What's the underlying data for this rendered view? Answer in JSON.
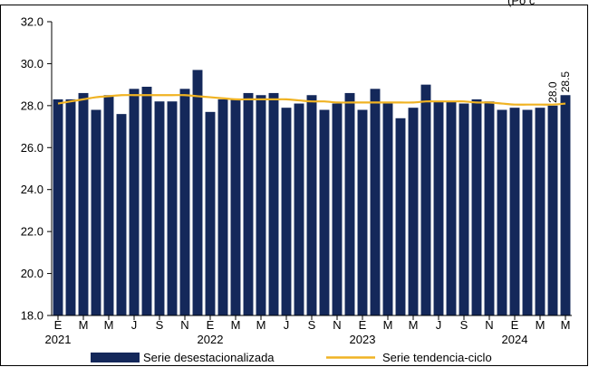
{
  "chart_data": {
    "type": "bar",
    "title": "",
    "corner_text": "(Po c",
    "xlabel": "",
    "ylabel": "",
    "ylim": [
      18.0,
      32.0
    ],
    "y_ticks": [
      "18.0",
      "20.0",
      "22.0",
      "24.0",
      "26.0",
      "28.0",
      "30.0",
      "32.0"
    ],
    "month_ticks": [
      "E",
      "M",
      "M",
      "J",
      "S",
      "N",
      "E",
      "M",
      "M",
      "J",
      "S",
      "N",
      "E",
      "M",
      "M",
      "J",
      "S",
      "N",
      "E",
      "M",
      "M"
    ],
    "year_labels": [
      "2021",
      "2022",
      "2023",
      "2024"
    ],
    "grid": false,
    "legend_position": "bottom",
    "series": [
      {
        "name": "Serie desestacionalizada",
        "type": "bar",
        "color": "#14285a",
        "values": [
          28.3,
          28.3,
          28.6,
          27.8,
          28.5,
          27.6,
          28.8,
          28.9,
          28.2,
          28.2,
          28.8,
          29.7,
          27.7,
          28.3,
          28.3,
          28.6,
          28.5,
          28.6,
          27.9,
          28.1,
          28.5,
          27.8,
          28.1,
          28.6,
          27.8,
          28.8,
          28.1,
          27.4,
          27.9,
          29.0,
          28.2,
          28.2,
          28.1,
          28.3,
          28.2,
          27.8,
          27.9,
          27.8,
          27.9,
          28.0,
          28.5
        ]
      },
      {
        "name": "Serie tendencia-ciclo",
        "type": "line",
        "color": "#f0b323",
        "values": [
          28.1,
          28.2,
          28.3,
          28.4,
          28.45,
          28.5,
          28.5,
          28.5,
          28.5,
          28.5,
          28.5,
          28.45,
          28.4,
          28.35,
          28.3,
          28.3,
          28.3,
          28.3,
          28.3,
          28.25,
          28.2,
          28.2,
          28.15,
          28.15,
          28.15,
          28.15,
          28.15,
          28.15,
          28.15,
          28.2,
          28.2,
          28.2,
          28.2,
          28.15,
          28.15,
          28.1,
          28.05,
          28.05,
          28.05,
          28.05,
          28.1
        ]
      }
    ],
    "data_labels": [
      {
        "index": 39,
        "text": "28.0"
      },
      {
        "index": 40,
        "text": "28.5"
      }
    ]
  }
}
